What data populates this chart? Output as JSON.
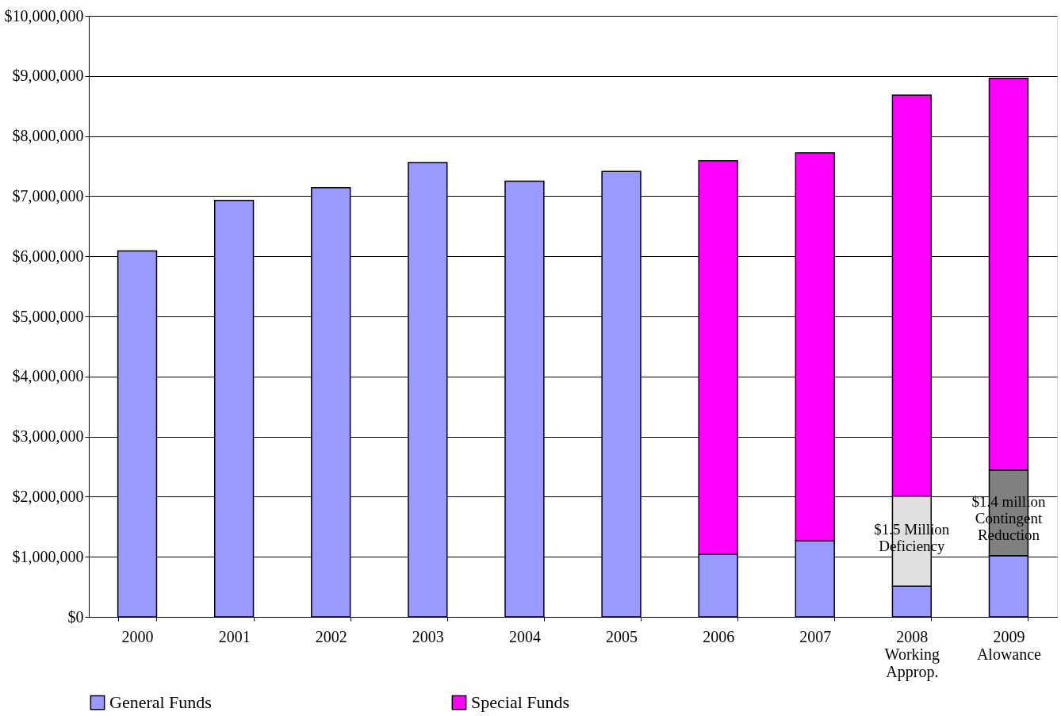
{
  "chart_data": {
    "type": "bar",
    "stacked": true,
    "categories": [
      "2000",
      "2001",
      "2002",
      "2003",
      "2004",
      "2005",
      "2006",
      "2007",
      "2008\nWorking\nApprop.",
      "2009\nAlowance"
    ],
    "series": [
      {
        "name": "General Funds",
        "color": "#9999ff",
        "values": [
          6090000,
          6930000,
          7140000,
          7560000,
          7250000,
          7410000,
          1040000,
          1270000,
          510000,
          1020000
        ]
      },
      {
        "color": "#e0e0e0",
        "values": [
          null,
          null,
          null,
          null,
          null,
          null,
          null,
          null,
          1500000,
          null
        ]
      },
      {
        "color": "#808080",
        "values": [
          null,
          null,
          null,
          null,
          null,
          null,
          null,
          null,
          null,
          1420000
        ]
      },
      {
        "name": "Special Funds",
        "color": "#ff00ff",
        "values": [
          null,
          null,
          null,
          null,
          null,
          null,
          6550000,
          6450000,
          6670000,
          6520000
        ]
      }
    ],
    "ylim": [
      0,
      10000000
    ],
    "yticks": [
      {
        "value": 0,
        "label": "$0"
      },
      {
        "value": 1000000,
        "label": "$1,000,000"
      },
      {
        "value": 2000000,
        "label": "$2,000,000"
      },
      {
        "value": 3000000,
        "label": "$3,000,000"
      },
      {
        "value": 4000000,
        "label": "$4,000,000"
      },
      {
        "value": 5000000,
        "label": "$5,000,000"
      },
      {
        "value": 6000000,
        "label": "$6,000,000"
      },
      {
        "value": 7000000,
        "label": "$7,000,000"
      },
      {
        "value": 8000000,
        "label": "$8,000,000"
      },
      {
        "value": 9000000,
        "label": "$9,000,000"
      },
      {
        "value": 10000000,
        "label": "$10,000,000"
      }
    ],
    "grid": "y",
    "legend": "bottom",
    "annotations": [
      "$1.5 Million\nDeficiency",
      "$1.4 million\nContingent\nReduction"
    ]
  }
}
